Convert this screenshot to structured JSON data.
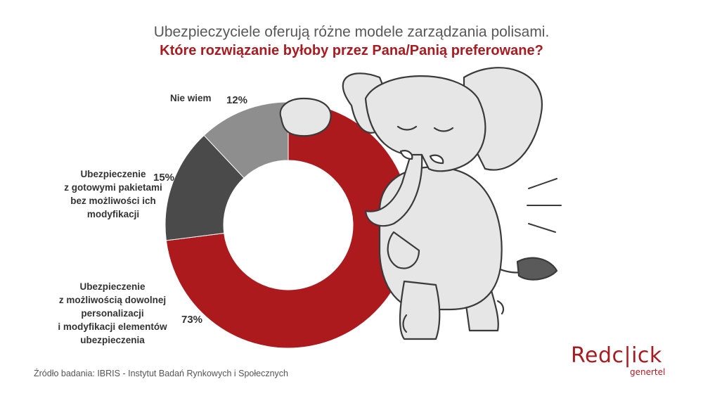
{
  "header": {
    "title": "Ubezpieczyciele oferują różne modele zarządzania polisami.",
    "subtitle": "Które rozwiązanie byłoby przez Pana/Panią preferowane?"
  },
  "chart_data": {
    "type": "pie",
    "style": "donut",
    "title": "Ubezpieczyciele oferują różne modele zarządzania polisami.",
    "subtitle": "Które rozwiązanie byłoby przez Pana/Panią preferowane?",
    "slices": [
      {
        "label": "Ubezpieczenie z możliwością dowolnej personalizacji i modyfikacji elementów ubezpieczenia",
        "value": 73,
        "value_label": "73%",
        "color": "#ad1a1e"
      },
      {
        "label": "Ubezpieczenie z gotowymi pakietami bez możliwości ich modyfikacji",
        "value": 15,
        "value_label": "15%",
        "color": "#4a4a4a"
      },
      {
        "label": "Nie wiem",
        "value": 12,
        "value_label": "12%",
        "color": "#8e8e8e"
      }
    ]
  },
  "labels": {
    "nie_wiem": "Nie wiem",
    "gotowe_lines": [
      "Ubezpieczenie",
      "z gotowymi pakietami",
      "bez możliwości ich",
      "modyfikacji"
    ],
    "personal_lines": [
      "Ubezpieczenie",
      "z możliwością dowolnej",
      "personalizacji",
      "i modyfikacji elementów",
      "ubezpieczenia"
    ]
  },
  "footer": {
    "source": "Źródło badania: IBRIS - Instytut Badań Rynkowych i Społecznych"
  },
  "logo": {
    "name": "Redclick",
    "text": "Redc|ick",
    "sub": "genertel"
  }
}
